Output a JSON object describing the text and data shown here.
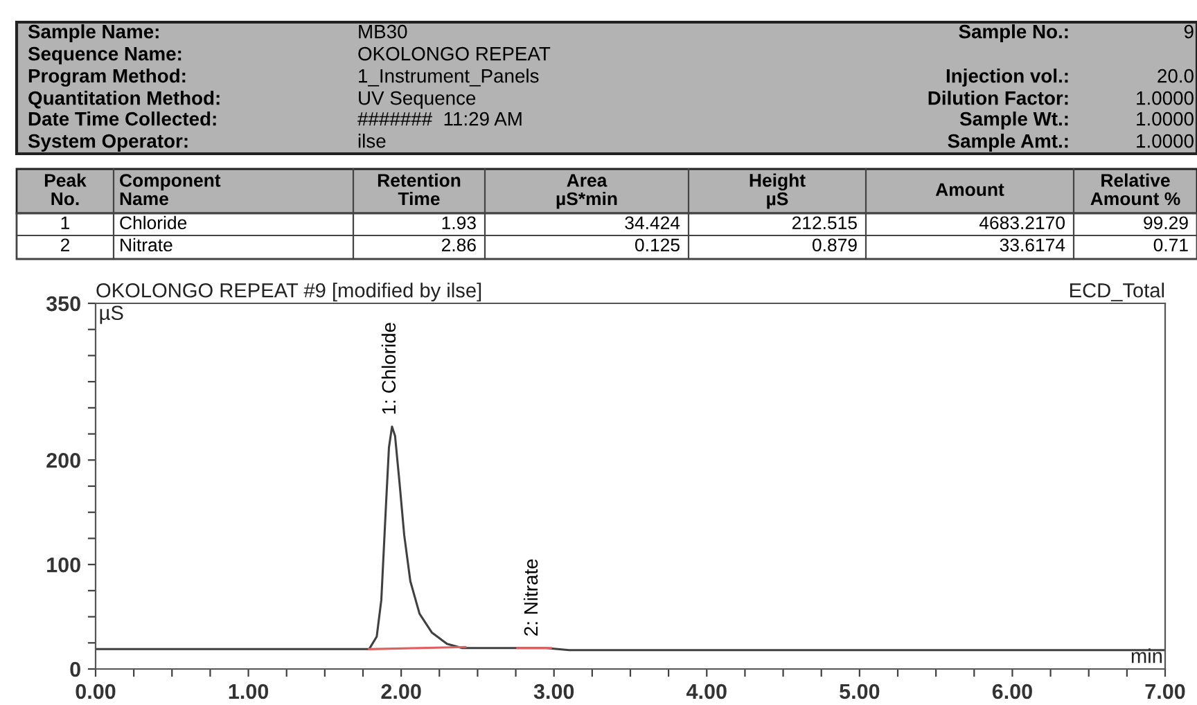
{
  "chart_data": {
    "type": "line",
    "title": "OKOLONGO REPEAT #9 [modified by ilse]",
    "subtitle": "ECD_Total",
    "xlabel": "min",
    "ylabel": "µS",
    "x": [
      0,
      1.78,
      1.79,
      1.84,
      1.87,
      1.9,
      1.92,
      1.94,
      1.96,
      1.99,
      2.02,
      2.06,
      2.12,
      2.2,
      2.3,
      2.4,
      2.6,
      2.8,
      2.86,
      2.95,
      3.1,
      4.0,
      5.0,
      6.0,
      7.0
    ],
    "series": [
      {
        "color": "#404040",
        "values": [
          19,
          19,
          19,
          31,
          66,
          155,
          212,
          232,
          223,
          177,
          128,
          84,
          53,
          35,
          24,
          20,
          20,
          20,
          20,
          20,
          18,
          18,
          18,
          18,
          18
        ]
      },
      {
        "color": "#e06060",
        "x": [
          1.79,
          2.42
        ],
        "values": [
          19,
          21
        ]
      },
      {
        "color": "#e06060",
        "x": [
          2.76,
          2.98
        ],
        "values": [
          20,
          20
        ]
      }
    ],
    "xlim": [
      0,
      7
    ],
    "ylim": [
      0,
      350
    ],
    "xticks": [
      {
        "value": 0,
        "label": "0.00"
      },
      {
        "value": 0.25,
        "label": null
      },
      {
        "value": 0.5,
        "label": null
      },
      {
        "value": 0.75,
        "label": null
      },
      {
        "value": 1,
        "label": "1.00"
      },
      {
        "value": 1.25,
        "label": null
      },
      {
        "value": 1.5,
        "label": null
      },
      {
        "value": 1.75,
        "label": null
      },
      {
        "value": 2,
        "label": "2.00"
      },
      {
        "value": 2.25,
        "label": null
      },
      {
        "value": 2.5,
        "label": null
      },
      {
        "value": 2.75,
        "label": null
      },
      {
        "value": 3,
        "label": "3.00"
      },
      {
        "value": 3.25,
        "label": null
      },
      {
        "value": 3.5,
        "label": null
      },
      {
        "value": 3.75,
        "label": null
      },
      {
        "value": 4,
        "label": "4.00"
      },
      {
        "value": 4.25,
        "label": null
      },
      {
        "value": 4.5,
        "label": null
      },
      {
        "value": 4.75,
        "label": null
      },
      {
        "value": 5,
        "label": "5.00"
      },
      {
        "value": 5.25,
        "label": null
      },
      {
        "value": 5.5,
        "label": null
      },
      {
        "value": 5.75,
        "label": null
      },
      {
        "value": 6,
        "label": "6.00"
      },
      {
        "value": 6.25,
        "label": null
      },
      {
        "value": 6.5,
        "label": null
      },
      {
        "value": 6.75,
        "label": null
      },
      {
        "value": 7,
        "label": "7.00"
      }
    ],
    "yticks": [
      0,
      {
        "value": 25,
        "label": null
      },
      {
        "value": 50,
        "label": null
      },
      {
        "value": 75,
        "label": null
      },
      100,
      {
        "value": 125,
        "label": null
      },
      {
        "value": 150,
        "label": null
      },
      {
        "value": 175,
        "label": null
      },
      200,
      {
        "value": 225,
        "label": null
      },
      {
        "value": 250,
        "label": null
      },
      {
        "value": 275,
        "label": null
      },
      {
        "value": 300,
        "label": null
      },
      {
        "value": 325,
        "label": null
      },
      350
    ],
    "grid": false,
    "marker": "none",
    "line_style": "solid",
    "annotations": [
      {
        "text": "1: Chloride",
        "x": 1.93,
        "y": 232
      },
      {
        "text": "2: Nitrate",
        "x": 2.86,
        "y": 20
      },
      "Sample Name:",
      "MB30",
      "Sequence Name:",
      "OKOLONGO REPEAT",
      "Program Method:",
      "1_Instrument_Panels",
      "Quantitation Method:",
      "UV Sequence",
      "Date Time Collected:",
      "#######  11:29 AM",
      "System Operator:",
      "ilse",
      "Sample No.:",
      "9",
      "Injection vol.:",
      "20.0",
      "Dilution Factor:",
      "1.0000",
      "Sample Wt.:",
      "1.0000",
      "Sample Amt.:",
      "1.0000",
      "Peak\nNo.",
      "Component\nName",
      "Retention\nTime",
      "Area\nµS*min",
      "Height\nµS",
      "Amount",
      "Relative\nAmount %",
      "1",
      "Chloride",
      "1.93",
      "34.424",
      "212.515",
      "4683.2170",
      "99.29",
      "2",
      "Nitrate",
      "2.86",
      "0.125",
      "0.879",
      "33.6174",
      "0.71"
    ]
  }
}
